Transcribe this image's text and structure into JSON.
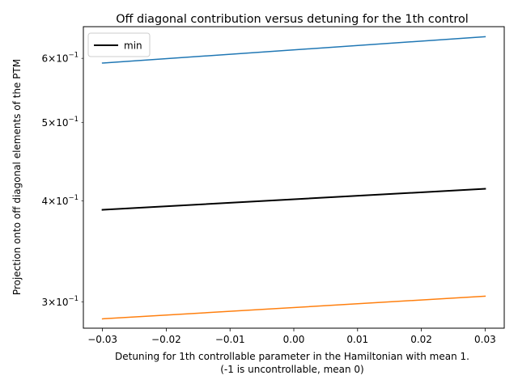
{
  "chart_data": {
    "type": "line",
    "title": "Off diagonal contribution versus detuning for the 1th control",
    "xlabel_line1": "Detuning for 1th controllable parameter in the Hamiltonian with mean 1.",
    "xlabel_line2": "(-1 is uncontrollable, mean 0)",
    "ylabel": "Projection onto off diagonal elements of the PTM",
    "xlim": [
      -0.033,
      0.033
    ],
    "ylim": [
      0.2785,
      0.6565
    ],
    "yscale": "log",
    "grid": false,
    "legend_placement": "top-left",
    "x_ticks": [
      {
        "value": -0.03,
        "label": "−0.03"
      },
      {
        "value": -0.02,
        "label": "−0.02"
      },
      {
        "value": -0.01,
        "label": "−0.01"
      },
      {
        "value": 0.0,
        "label": "0.00"
      },
      {
        "value": 0.01,
        "label": "0.01"
      },
      {
        "value": 0.02,
        "label": "0.02"
      },
      {
        "value": 0.03,
        "label": "0.03"
      }
    ],
    "y_ticks": [
      {
        "value": 0.3,
        "mantissa": "3",
        "exponent": "−1"
      },
      {
        "value": 0.4,
        "mantissa": "4",
        "exponent": "−1"
      },
      {
        "value": 0.5,
        "mantissa": "5",
        "exponent": "−1"
      },
      {
        "value": 0.6,
        "mantissa": "6",
        "exponent": "−1"
      }
    ],
    "series": [
      {
        "color": "#1f77b4",
        "width": 1.5,
        "x": [
          -0.03,
          0.03
        ],
        "y": [
          0.592,
          0.638
        ]
      },
      {
        "color": "#ff7f0e",
        "width": 1.5,
        "x": [
          -0.03,
          0.03
        ],
        "y": [
          0.286,
          0.305
        ]
      },
      {
        "name": "min",
        "color": "#000000",
        "width": 2,
        "x": [
          -0.03,
          0.03
        ],
        "y": [
          0.39,
          0.414
        ]
      }
    ]
  }
}
